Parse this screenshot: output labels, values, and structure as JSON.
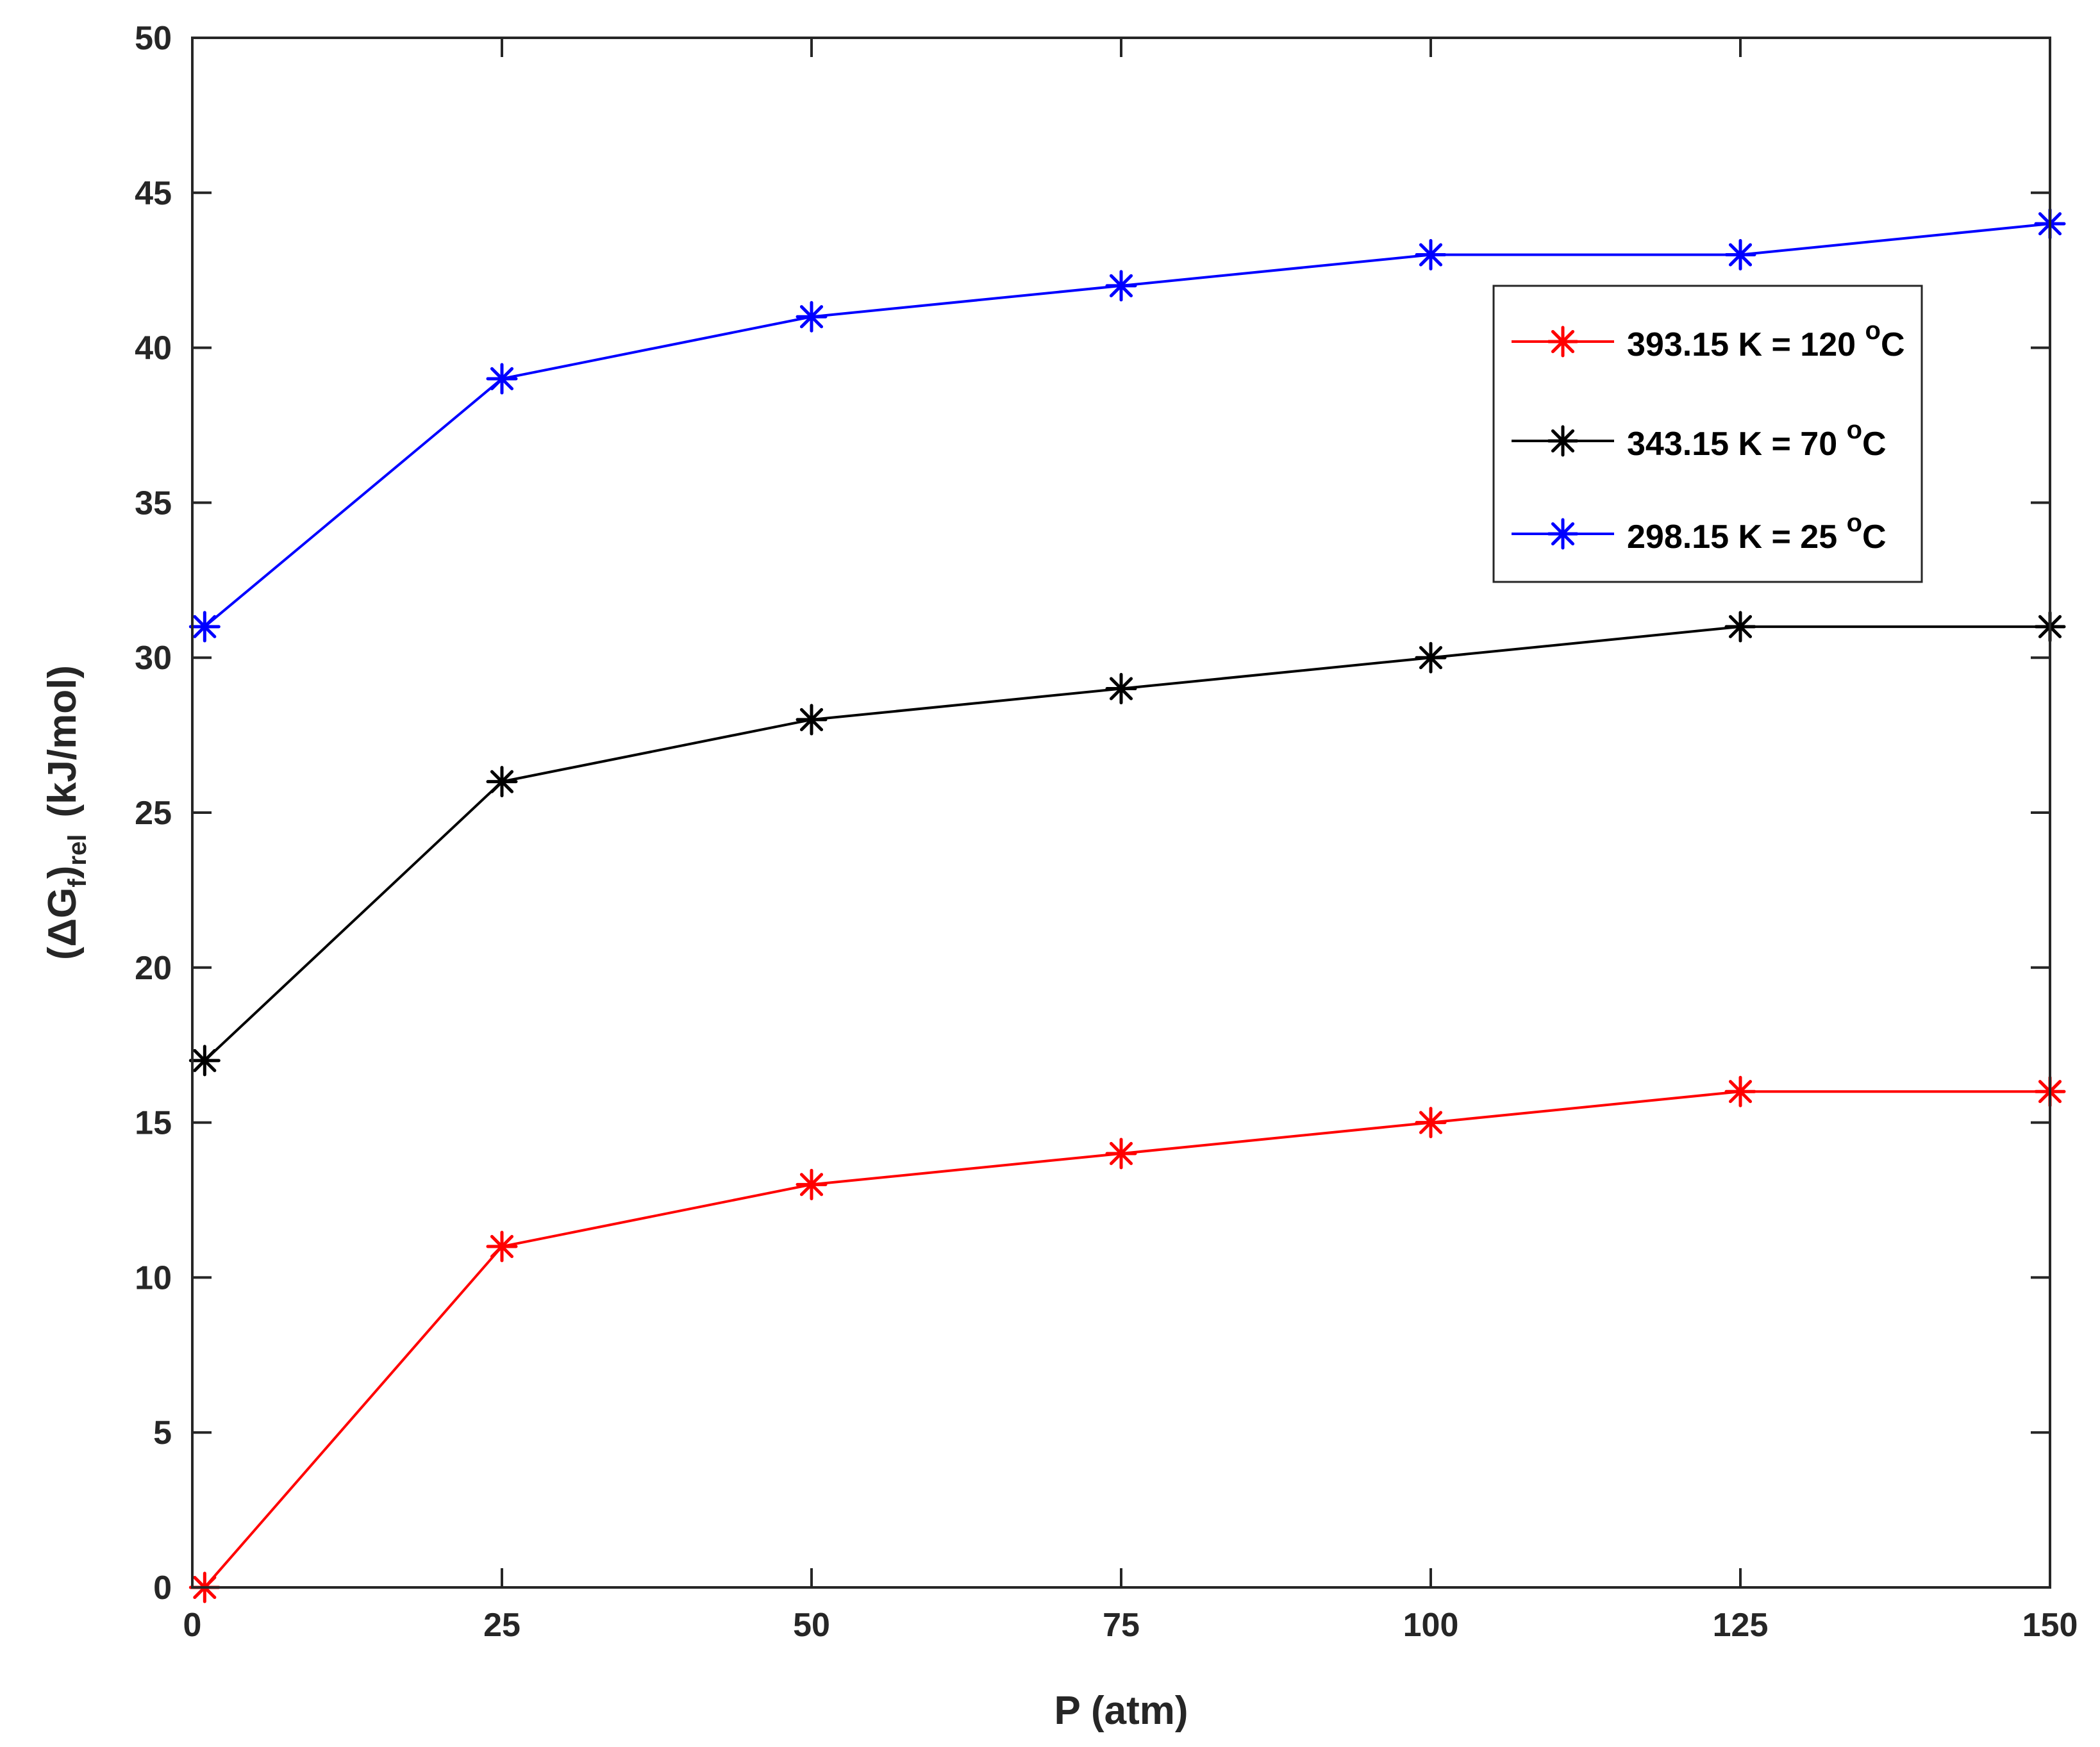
{
  "chart_data": {
    "type": "line",
    "xlabel": "P (atm)",
    "ylabel": {
      "prefix": "(ΔG",
      "sub1": "f",
      "close": ")",
      "sub2": "rel",
      "unit": "(kJ/mol)"
    },
    "xlim": [
      0,
      150
    ],
    "ylim": [
      0,
      50
    ],
    "xticks": [
      0,
      25,
      50,
      75,
      100,
      125,
      150
    ],
    "yticks": [
      0,
      5,
      10,
      15,
      20,
      25,
      30,
      35,
      40,
      45,
      50
    ],
    "x": [
      1,
      25,
      50,
      75,
      100,
      125,
      150
    ],
    "grid": false,
    "legend_position": "top-right",
    "series": [
      {
        "name": "393.15 K = 120 °C",
        "label_main": "393.15 K = 120 ",
        "label_sup": "o",
        "label_end": "C",
        "color": "#ff0000",
        "values": [
          0,
          11,
          13,
          14,
          15,
          16,
          16
        ]
      },
      {
        "name": "343.15 K = 70 °C",
        "label_main": "343.15 K = 70 ",
        "label_sup": "o",
        "label_end": "C",
        "color": "#000000",
        "values": [
          17,
          26,
          28,
          29,
          30,
          31,
          31
        ]
      },
      {
        "name": "298.15 K = 25 °C",
        "label_main": "298.15 K = 25 ",
        "label_sup": "o",
        "label_end": "C",
        "color": "#0000ff",
        "values": [
          31,
          39,
          41,
          42,
          43,
          43,
          44
        ]
      }
    ]
  }
}
